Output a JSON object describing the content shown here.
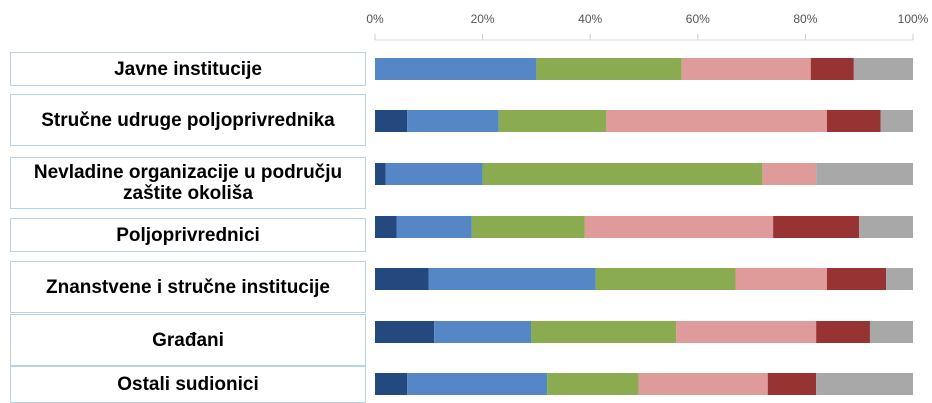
{
  "chart_data": {
    "type": "stacked_barh",
    "categories": [
      "Javne institucije",
      "Stručne udruge poljoprivrednika",
      "Nevladine organizacije u području zaštite okoliša",
      "Poljoprivrednici",
      "Znanstvene i stručne institucije",
      "Građani",
      "Ostali sudionici"
    ],
    "series": [
      {
        "color": "#24497e",
        "values": [
          0,
          6,
          2,
          4,
          10,
          11,
          6
        ]
      },
      {
        "color": "#5587c6",
        "values": [
          30,
          17,
          18,
          14,
          31,
          18,
          26
        ]
      },
      {
        "color": "#8aab50",
        "values": [
          27,
          20,
          52,
          21,
          26,
          27,
          17
        ]
      },
      {
        "color": "#df9a9a",
        "values": [
          24,
          41,
          10,
          35,
          17,
          26,
          24
        ]
      },
      {
        "color": "#983333",
        "values": [
          8,
          10,
          0,
          16,
          11,
          10,
          9
        ]
      },
      {
        "color": "#a8a8a8",
        "values": [
          11,
          6,
          18,
          10,
          5,
          8,
          18
        ]
      }
    ],
    "xlim": [
      0,
      100
    ],
    "xticks": [
      {
        "value": 0,
        "label": "0%"
      },
      {
        "value": 20,
        "label": "20%"
      },
      {
        "value": 40,
        "label": "40%"
      },
      {
        "value": 60,
        "label": "60%"
      },
      {
        "value": 80,
        "label": "80%"
      },
      {
        "value": 100,
        "label": "100%"
      }
    ]
  }
}
